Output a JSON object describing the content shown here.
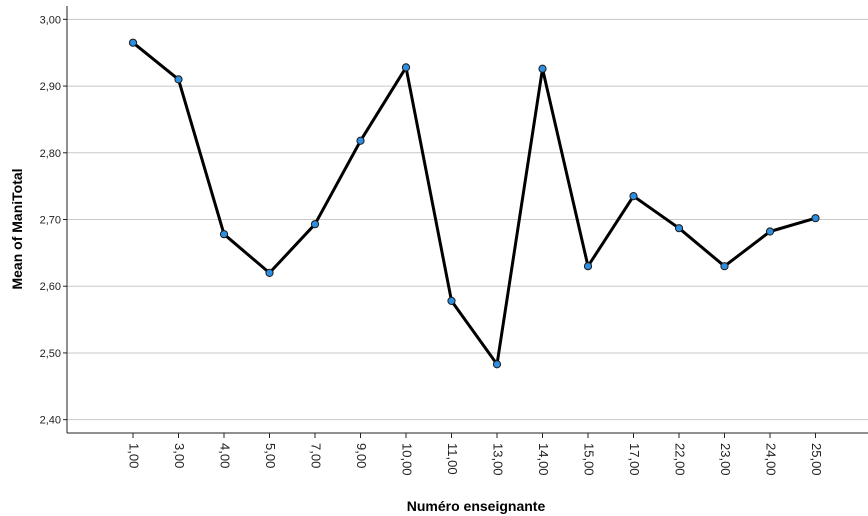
{
  "chart_data": {
    "type": "line",
    "xlabel": "Numéro enseignante",
    "ylabel": "Mean of ManiTotal",
    "categories": [
      "1,00",
      "3,00",
      "4,00",
      "5,00",
      "7,00",
      "9,00",
      "10,00",
      "11,00",
      "13,00",
      "14,00",
      "15,00",
      "17,00",
      "22,00",
      "23,00",
      "24,00",
      "25,00"
    ],
    "series": [
      {
        "values": [
          2.965,
          2.91,
          2.678,
          2.62,
          2.693,
          2.818,
          2.928,
          2.578,
          2.483,
          2.926,
          2.63,
          2.735,
          2.687,
          2.63,
          2.682,
          2.702
        ]
      }
    ],
    "ylim": [
      2.38,
      3.02
    ],
    "yticks": [
      2.4,
      2.5,
      2.6,
      2.7,
      2.8,
      2.9,
      3.0
    ],
    "ytick_labels": [
      "2,40",
      "2,50",
      "2,60",
      "2,70",
      "2,80",
      "2,90",
      "3,00"
    ],
    "grid": "horizontal",
    "legend": "none",
    "line_color": "#000000",
    "marker_fill": "#2e8fe0",
    "marker_edge": "#1a1a1a",
    "grid_color": "#c8c8c8"
  }
}
